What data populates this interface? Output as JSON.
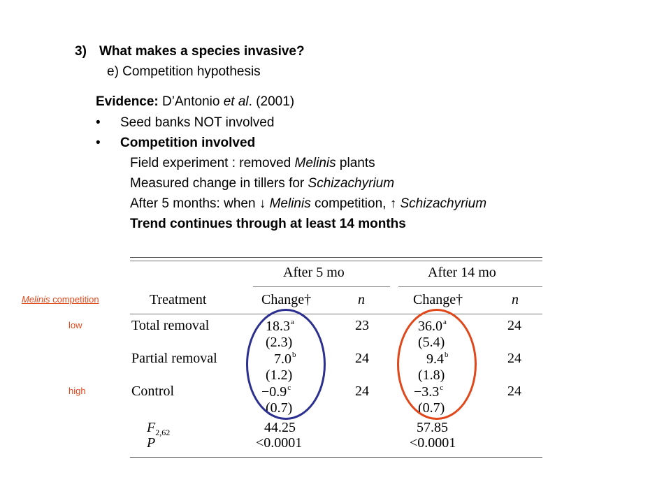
{
  "heading": {
    "number": "3)",
    "title": "What makes a species invasive?",
    "subtitle": "e) Competition hypothesis"
  },
  "evidence": {
    "label": "Evidence:",
    "authors_prefix": "D’Antonio ",
    "authors_etal": "et al",
    "authors_suffix": ". (2001)",
    "bullet": "•",
    "bullets": [
      "Seed banks NOT involved",
      "Competition involved"
    ],
    "lines": {
      "l1_a": "Field experiment : removed ",
      "l1_b": "Melinis",
      "l1_c": " plants",
      "l2_a": "Measured change in tillers for ",
      "l2_b": "Schizachyrium",
      "l3_a": "After 5 months: when ↓ ",
      "l3_b": "Melinis",
      "l3_c": " competition, ↑ ",
      "l3_d": "Schizachyrium",
      "l4": "Trend continues through at least 14 months"
    }
  },
  "side_labels": {
    "competition_italic": "Melinis",
    "competition_rest": " competition",
    "low": "low",
    "high": "high"
  },
  "table": {
    "group_5": "After 5 mo",
    "group_14": "After 14 mo",
    "col_treatment": "Treatment",
    "col_change": "Change†",
    "col_n": "n",
    "rows": [
      {
        "name": "Total removal",
        "c5": "18.3",
        "s5": "a",
        "se5": "(2.3)",
        "n5": "23",
        "c14": "36.0",
        "s14": "a",
        "se14": "(5.4)",
        "n14": "24"
      },
      {
        "name": "Partial removal",
        "c5": "7.0",
        "s5": "b",
        "se5": "(1.2)",
        "n5": "24",
        "c14": "9.4",
        "s14": "b",
        "se14": "(1.8)",
        "n14": "24"
      },
      {
        "name": "Control",
        "c5": "−0.9",
        "s5": "c",
        "se5": "(0.7)",
        "n5": "24",
        "c14": "−3.3",
        "s14": "c",
        "se14": "(0.7)",
        "n14": "24"
      }
    ],
    "f_label": "F",
    "f_sub": "2,62",
    "f5": "44.25",
    "f14": "57.85",
    "p_label": "P",
    "p5": "<0.0001",
    "p14": "<0.0001"
  },
  "colors": {
    "blue_ellipse": "#2b2f8f",
    "red_ellipse": "#e0471a",
    "side_label": "#e0471a"
  }
}
